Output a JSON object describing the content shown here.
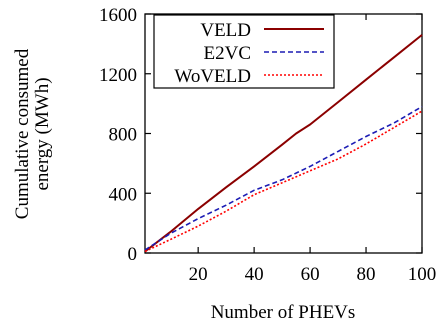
{
  "chart_data": {
    "type": "line",
    "title": "",
    "xlabel": "Number of PHEVs",
    "ylabel_lines": [
      "Cumulative consumed",
      "energy (MWh)"
    ],
    "xlim": [
      1,
      100
    ],
    "ylim": [
      0,
      1600
    ],
    "xticks": [
      20,
      40,
      60,
      80,
      100
    ],
    "yticks": [
      0,
      400,
      800,
      1200,
      1600
    ],
    "grid": false,
    "legend_position": "top-left",
    "series": [
      {
        "name": "VELD",
        "color": "#8b0000",
        "dash": "solid",
        "x": [
          1,
          10,
          20,
          30,
          40,
          50,
          55,
          60,
          70,
          80,
          90,
          100
        ],
        "y": [
          10,
          140,
          295,
          440,
          580,
          725,
          800,
          860,
          1010,
          1160,
          1310,
          1460
        ]
      },
      {
        "name": "E2VC",
        "color": "#1c1cb4",
        "dash": "dashed",
        "x": [
          1,
          10,
          20,
          30,
          40,
          50,
          60,
          70,
          80,
          90,
          100
        ],
        "y": [
          20,
          130,
          230,
          320,
          420,
          490,
          580,
          680,
          780,
          870,
          980
        ]
      },
      {
        "name": "WoVELD",
        "color": "#ff0000",
        "dash": "dotted",
        "x": [
          1,
          10,
          20,
          30,
          40,
          50,
          60,
          70,
          80,
          90,
          100
        ],
        "y": [
          10,
          90,
          180,
          280,
          390,
          470,
          550,
          630,
          730,
          840,
          950
        ]
      }
    ]
  }
}
